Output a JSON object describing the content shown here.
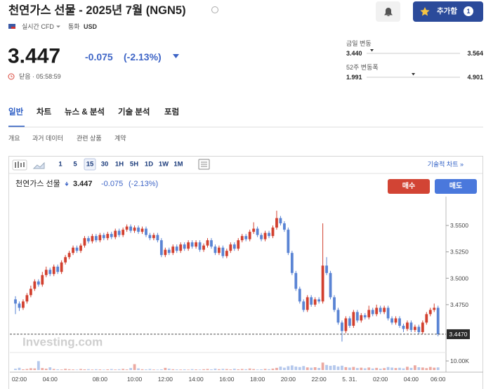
{
  "header": {
    "title": "천연가스 선물 - 2025년 7월 (NGN5)",
    "feed": "실시간 CFD",
    "currency_label": "통화",
    "currency": "USD",
    "add_button": "추가함",
    "watch_count": "1"
  },
  "quote": {
    "price": "3.447",
    "change": "-0.075",
    "change_percent": "(-2.13%)",
    "status": "닫음 · 05:58:59"
  },
  "ranges": [
    {
      "label": "금일 변동",
      "low": "3.440",
      "high": "3.564"
    },
    {
      "label": "52주 변동폭",
      "low": "1.991",
      "high": "4.901"
    }
  ],
  "nav": {
    "tabs": [
      "일반",
      "차트",
      "뉴스 & 분석",
      "기술 분석",
      "포럼"
    ],
    "subtabs": [
      "개요",
      "과거 데이터",
      "관련 상품",
      "계약"
    ]
  },
  "toolbar": {
    "intervals": [
      "1",
      "5",
      "15",
      "30",
      "1H",
      "5H",
      "1D",
      "1W",
      "1M"
    ],
    "technical_chart": "기술적 차트 »"
  },
  "chart_data": {
    "type": "candlestick",
    "title": "천연가스 선물",
    "price": "3.447",
    "change": "-0.075",
    "change_percent": "(-2.13%)",
    "buy": "매수",
    "sell": "매도",
    "watermark": "Investing.com",
    "up_color": "#d2402f",
    "down_color": "#5a84d4",
    "categories": [
      null,
      "02:00",
      null,
      null,
      null,
      null,
      null,
      null,
      null,
      "04:00",
      null,
      null,
      null,
      null,
      null,
      null,
      null,
      null,
      null,
      null,
      null,
      null,
      "08:00",
      null,
      null,
      null,
      null,
      null,
      null,
      null,
      null,
      "10:00",
      null,
      null,
      null,
      null,
      null,
      null,
      null,
      "12:00",
      null,
      null,
      null,
      null,
      null,
      null,
      null,
      "14:00",
      null,
      null,
      null,
      null,
      null,
      null,
      null,
      "16:00",
      null,
      null,
      null,
      null,
      null,
      null,
      null,
      "18:00",
      null,
      null,
      null,
      null,
      null,
      null,
      null,
      "20:00",
      null,
      null,
      null,
      null,
      null,
      null,
      null,
      "22:00",
      null,
      null,
      null,
      null,
      null,
      null,
      null,
      "5. 31.",
      null,
      null,
      null,
      null,
      null,
      null,
      null,
      "02:00",
      null,
      null,
      null,
      null,
      null,
      null,
      null,
      "04:00",
      null,
      null,
      null,
      null,
      null,
      null,
      "06:00"
    ],
    "open": [
      3.48,
      3.476,
      3.472,
      3.478,
      3.484,
      3.49,
      3.497,
      3.494,
      3.503,
      3.508,
      3.504,
      3.511,
      3.506,
      3.515,
      3.52,
      3.524,
      3.529,
      3.526,
      3.531,
      3.538,
      3.535,
      3.54,
      3.536,
      3.541,
      3.538,
      3.542,
      3.539,
      3.545,
      3.541,
      3.546,
      3.549,
      3.545,
      3.548,
      3.544,
      3.547,
      3.541,
      3.538,
      3.541,
      3.536,
      3.522,
      3.527,
      3.524,
      3.53,
      3.526,
      3.532,
      3.528,
      3.534,
      3.53,
      3.534,
      3.527,
      3.531,
      3.536,
      3.53,
      3.524,
      3.529,
      3.521,
      3.526,
      3.532,
      3.528,
      3.536,
      3.54,
      3.537,
      3.544,
      3.547,
      3.541,
      3.537,
      3.543,
      3.54,
      3.548,
      3.557,
      3.552,
      3.546,
      3.524,
      3.505,
      3.49,
      3.478,
      3.47,
      3.482,
      3.475,
      3.48,
      3.478,
      3.512,
      3.505,
      3.482,
      3.47,
      3.458,
      3.45,
      3.462,
      3.455,
      3.468,
      3.46,
      3.465,
      3.463,
      3.47,
      3.466,
      3.472,
      3.468,
      3.472,
      3.462,
      3.458,
      3.462,
      3.455,
      3.452,
      3.458,
      3.451,
      3.454,
      3.449,
      3.458,
      3.466,
      3.47,
      3.472
    ],
    "high": [
      3.483,
      3.478,
      3.48,
      3.486,
      3.493,
      3.499,
      3.499,
      3.506,
      3.511,
      3.51,
      3.513,
      3.513,
      3.517,
      3.522,
      3.526,
      3.531,
      3.531,
      3.533,
      3.54,
      3.54,
      3.542,
      3.542,
      3.543,
      3.543,
      3.544,
      3.544,
      3.547,
      3.547,
      3.548,
      3.551,
      3.551,
      3.55,
      3.55,
      3.549,
      3.549,
      3.543,
      3.543,
      3.543,
      3.538,
      3.529,
      3.529,
      3.532,
      3.532,
      3.534,
      3.534,
      3.536,
      3.536,
      3.536,
      3.536,
      3.533,
      3.538,
      3.538,
      3.532,
      3.531,
      3.531,
      3.528,
      3.534,
      3.534,
      3.538,
      3.542,
      3.542,
      3.546,
      3.553,
      3.549,
      3.543,
      3.545,
      3.545,
      3.55,
      3.564,
      3.559,
      3.554,
      3.548,
      3.526,
      3.507,
      3.492,
      3.48,
      3.484,
      3.484,
      3.482,
      3.482,
      3.552,
      3.52,
      3.507,
      3.484,
      3.472,
      3.46,
      3.464,
      3.464,
      3.47,
      3.47,
      3.467,
      3.467,
      3.474,
      3.472,
      3.475,
      3.474,
      3.474,
      3.474,
      3.464,
      3.464,
      3.464,
      3.457,
      3.46,
      3.46,
      3.456,
      3.456,
      3.46,
      3.468,
      3.472,
      3.476,
      3.474
    ],
    "low": [
      3.466,
      3.469,
      3.47,
      3.476,
      3.482,
      3.488,
      3.492,
      3.492,
      3.501,
      3.502,
      3.502,
      3.504,
      3.504,
      3.513,
      3.518,
      3.522,
      3.524,
      3.524,
      3.529,
      3.533,
      3.533,
      3.534,
      3.534,
      3.536,
      3.536,
      3.537,
      3.537,
      3.539,
      3.539,
      3.544,
      3.543,
      3.543,
      3.542,
      3.542,
      3.539,
      3.536,
      3.536,
      3.534,
      3.52,
      3.52,
      3.522,
      3.522,
      3.524,
      3.524,
      3.526,
      3.526,
      3.528,
      3.528,
      3.525,
      3.525,
      3.529,
      3.528,
      3.522,
      3.522,
      3.519,
      3.519,
      3.524,
      3.526,
      3.526,
      3.534,
      3.535,
      3.535,
      3.542,
      3.539,
      3.535,
      3.535,
      3.538,
      3.538,
      3.546,
      3.55,
      3.544,
      3.522,
      3.503,
      3.488,
      3.476,
      3.468,
      3.468,
      3.473,
      3.473,
      3.476,
      3.476,
      3.503,
      3.48,
      3.468,
      3.456,
      3.44,
      3.448,
      3.453,
      3.453,
      3.458,
      3.458,
      3.461,
      3.461,
      3.464,
      3.464,
      3.466,
      3.466,
      3.46,
      3.456,
      3.456,
      3.453,
      3.449,
      3.45,
      3.449,
      3.449,
      3.447,
      3.447,
      3.456,
      3.464,
      3.468,
      3.445
    ],
    "close": [
      3.476,
      3.472,
      3.478,
      3.484,
      3.49,
      3.497,
      3.494,
      3.503,
      3.508,
      3.504,
      3.511,
      3.506,
      3.515,
      3.52,
      3.524,
      3.529,
      3.526,
      3.531,
      3.538,
      3.535,
      3.54,
      3.536,
      3.541,
      3.538,
      3.542,
      3.539,
      3.545,
      3.541,
      3.546,
      3.549,
      3.545,
      3.548,
      3.544,
      3.547,
      3.541,
      3.538,
      3.541,
      3.536,
      3.522,
      3.527,
      3.524,
      3.53,
      3.526,
      3.532,
      3.528,
      3.534,
      3.53,
      3.534,
      3.527,
      3.531,
      3.536,
      3.53,
      3.524,
      3.529,
      3.521,
      3.526,
      3.532,
      3.528,
      3.536,
      3.54,
      3.537,
      3.544,
      3.547,
      3.541,
      3.537,
      3.543,
      3.54,
      3.548,
      3.557,
      3.552,
      3.546,
      3.524,
      3.505,
      3.49,
      3.478,
      3.47,
      3.482,
      3.475,
      3.48,
      3.478,
      3.512,
      3.505,
      3.482,
      3.47,
      3.458,
      3.45,
      3.462,
      3.455,
      3.468,
      3.46,
      3.465,
      3.463,
      3.47,
      3.466,
      3.472,
      3.468,
      3.472,
      3.462,
      3.458,
      3.462,
      3.455,
      3.452,
      3.458,
      3.451,
      3.454,
      3.449,
      3.458,
      3.466,
      3.47,
      3.472,
      3.447
    ],
    "volume": [
      1500,
      2500,
      800,
      1200,
      2000,
      1800,
      9800,
      2200,
      1500,
      3000,
      1200,
      800,
      600,
      1400,
      900,
      700,
      500,
      1200,
      800,
      1000,
      600,
      900,
      700,
      500,
      800,
      1100,
      600,
      900,
      1300,
      700,
      2200,
      6500,
      1800,
      900,
      700,
      1200,
      600,
      500,
      800,
      2400,
      1500,
      900,
      700,
      600,
      800,
      500,
      1000,
      700,
      600,
      900,
      1200,
      800,
      1600,
      900,
      1300,
      1100,
      700,
      1500,
      800,
      1200,
      900,
      1700,
      1100,
      600,
      800,
      1300,
      900,
      1600,
      2400,
      3800,
      2600,
      4200,
      5100,
      3800,
      3300,
      4400,
      2900,
      2600,
      3100,
      2300,
      8200,
      5600,
      4700,
      5300,
      3900,
      4800,
      3200,
      2700,
      3400,
      2200,
      2600,
      1900,
      2800,
      1700,
      2400,
      1500,
      2100,
      3300,
      2700,
      2200,
      2500,
      1800,
      3600,
      2400,
      5200,
      3100,
      2800,
      2100,
      3400,
      2600,
      2900
    ],
    "ylim": [
      3.431,
      3.584
    ],
    "yticks": [
      {
        "value": 3.55,
        "label": "3.5500"
      },
      {
        "value": 3.525,
        "label": "3.5250"
      },
      {
        "value": 3.5,
        "label": "3.5000"
      },
      {
        "value": 3.475,
        "label": "3.4750"
      }
    ],
    "last_price": {
      "value": 3.447,
      "label": "3.4470"
    },
    "volume_ylim": [
      0,
      17000
    ],
    "volume_yticks": [
      {
        "value": 10000,
        "label": "10.00K"
      }
    ]
  }
}
